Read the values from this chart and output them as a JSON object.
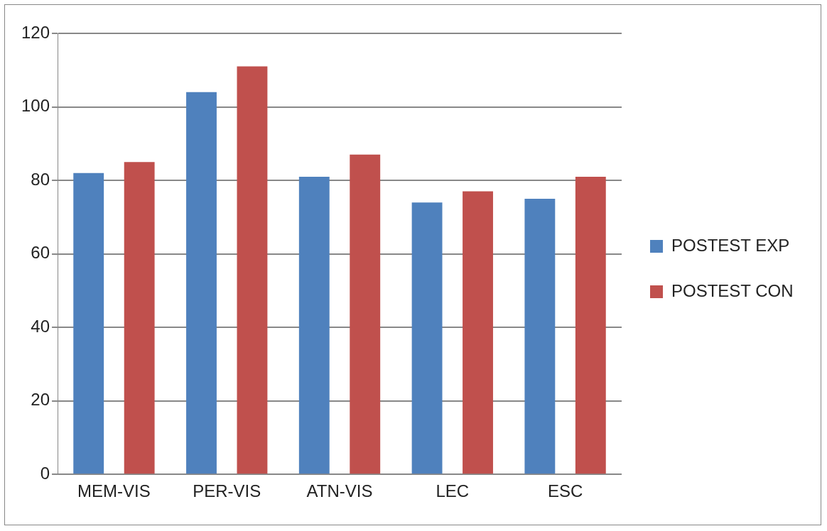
{
  "chart_data": {
    "type": "bar",
    "categories": [
      "MEM-VIS",
      "PER-VIS",
      "ATN-VIS",
      "LEC",
      "ESC"
    ],
    "series": [
      {
        "name": "POSTEST EXP",
        "color": "#4f81bd",
        "values": [
          82,
          104,
          81,
          74,
          75
        ]
      },
      {
        "name": "POSTEST CON",
        "color": "#c0504d",
        "values": [
          85,
          111,
          87,
          77,
          81
        ]
      }
    ],
    "ylim": [
      0,
      120
    ],
    "yticks": [
      0,
      20,
      40,
      60,
      80,
      100,
      120
    ],
    "grid": "y",
    "legend": "right"
  }
}
